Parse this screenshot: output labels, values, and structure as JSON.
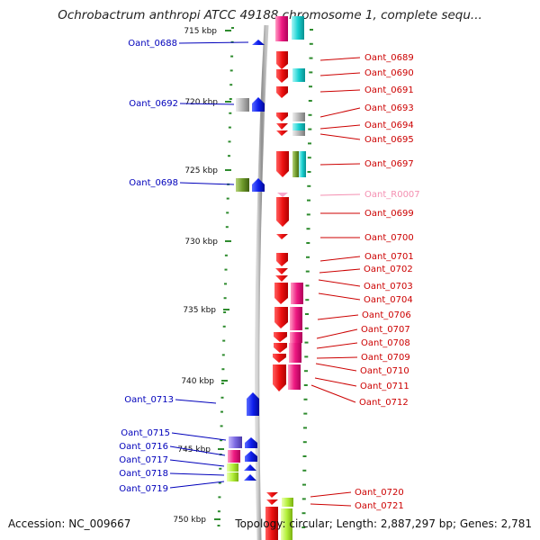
{
  "title": "Ochrobactrum anthropi ATCC 49188 chromosome 1, complete sequ...",
  "footer": {
    "accession": "Accession: NC_009667",
    "topology": "Topology: circular; Length: 2,887,297 bp; Genes: 2,781"
  },
  "scale_labels": [
    "715 kbp",
    "720 kbp",
    "725 kbp",
    "730 kbp",
    "735 kbp",
    "740 kbp",
    "745 kbp",
    "750 kbp"
  ],
  "colors": {
    "red_gene": "#ee1111",
    "blue_gene": "#0a14e6",
    "right_label": "#cc0000",
    "left_label": "#0000bb",
    "rna_label": "#f48fb1",
    "tick": "#2e8b2e",
    "backbone": "#9a9a9a"
  },
  "left_labels": [
    "Oant_0688",
    "Oant_0692",
    "Oant_0698",
    "Oant_0713",
    "Oant_0715",
    "Oant_0716",
    "Oant_0717",
    "Oant_0718",
    "Oant_0719"
  ],
  "right_labels": [
    "Oant_0689",
    "Oant_0690",
    "Oant_0691",
    "Oant_0693",
    "Oant_0694",
    "Oant_0695",
    "Oant_0697",
    "Oant_R0007",
    "Oant_0699",
    "Oant_0700",
    "Oant_0701",
    "Oant_0702",
    "Oant_0703",
    "Oant_0704",
    "Oant_0706",
    "Oant_0707",
    "Oant_0708",
    "Oant_0709",
    "Oant_0710",
    "Oant_0711",
    "Oant_0712",
    "Oant_0720",
    "Oant_0721"
  ]
}
